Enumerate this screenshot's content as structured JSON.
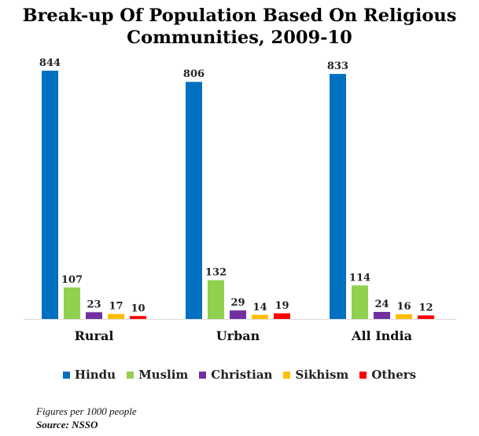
{
  "title_line1": "Break-up Of Population Based On Religious",
  "title_line2": "Communities, 2009-10",
  "footnote": "Figures per 1000 people",
  "source": "Source: NSSO",
  "chart_data": {
    "type": "bar",
    "title": "Break-up Of Population Based On Religious Communities, 2009-10",
    "categories": [
      "Rural",
      "Urban",
      "All India"
    ],
    "series": [
      {
        "name": "Hindu",
        "values": [
          844,
          806,
          833
        ],
        "color": "#0070C0"
      },
      {
        "name": "Muslim",
        "values": [
          107,
          132,
          114
        ],
        "color": "#92D050"
      },
      {
        "name": "Christian",
        "values": [
          23,
          29,
          24
        ],
        "color": "#7030A0"
      },
      {
        "name": "Sikhism",
        "values": [
          17,
          14,
          16
        ],
        "color": "#FFC000"
      },
      {
        "name": "Others",
        "values": [
          10,
          19,
          12
        ],
        "color": "#FF0000"
      }
    ],
    "ylim": [
      0,
      900
    ],
    "grid": false,
    "legend": "bottom",
    "units": "Figures per 1000 people"
  }
}
